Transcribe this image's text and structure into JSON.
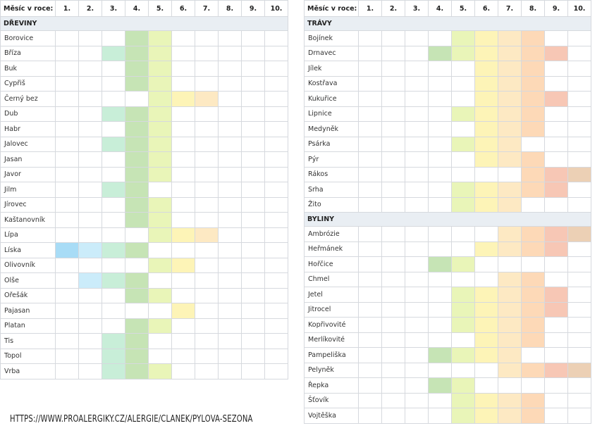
{
  "header": {
    "label": "Měsíc v roce:",
    "months": [
      "1.",
      "2.",
      "3.",
      "4.",
      "5.",
      "6.",
      "7.",
      "8.",
      "9.",
      "10."
    ]
  },
  "legend_colors": {
    "1": "#a8dcf6",
    "2": "#cbecfa",
    "3": "#c8eed8",
    "4": "#c6e4b5",
    "5": "#e9f5b8",
    "6": "#fdf4b7",
    "7": "#fde9c3",
    "8": "#fdd9b7",
    "9": "#f7c7b5",
    "10": "#ecd0b5"
  },
  "footer_url": "HTTPS://WWW.PROALERGIKY.CZ/ALERGIE/CLANEK/PYLOVA-SEZONA",
  "chart_data": {
    "type": "table",
    "sections": [
      {
        "side": "left",
        "name": "DŘEVINY",
        "plants": [
          {
            "name": "Borovice",
            "months": [
              4,
              5
            ]
          },
          {
            "name": "Bříza",
            "months": [
              3,
              4,
              5
            ]
          },
          {
            "name": "Buk",
            "months": [
              4,
              5
            ]
          },
          {
            "name": "Cypřiš",
            "months": [
              4,
              5
            ]
          },
          {
            "name": "Černý bez",
            "months": [
              5,
              6,
              7
            ]
          },
          {
            "name": "Dub",
            "months": [
              3,
              4,
              5
            ]
          },
          {
            "name": "Habr",
            "months": [
              4,
              5
            ]
          },
          {
            "name": "Jalovec",
            "months": [
              3,
              4,
              5
            ]
          },
          {
            "name": "Jasan",
            "months": [
              4,
              5
            ]
          },
          {
            "name": "Javor",
            "months": [
              4,
              5
            ]
          },
          {
            "name": "Jilm",
            "months": [
              3,
              4
            ]
          },
          {
            "name": "Jírovec",
            "months": [
              4,
              5
            ]
          },
          {
            "name": "Kaštanovník",
            "months": [
              4,
              5
            ]
          },
          {
            "name": "Lípa",
            "months": [
              5,
              6,
              7
            ]
          },
          {
            "name": "Líska",
            "months": [
              1,
              2,
              3,
              4
            ]
          },
          {
            "name": "Olivovník",
            "months": [
              5,
              6
            ]
          },
          {
            "name": "Olše",
            "months": [
              2,
              3,
              4
            ]
          },
          {
            "name": "Ořešák",
            "months": [
              4,
              5
            ]
          },
          {
            "name": "Pajasan",
            "months": [
              6
            ]
          },
          {
            "name": "Platan",
            "months": [
              4,
              5
            ]
          },
          {
            "name": "Tis",
            "months": [
              3,
              4
            ]
          },
          {
            "name": "Topol",
            "months": [
              3,
              4
            ]
          },
          {
            "name": "Vrba",
            "months": [
              3,
              4,
              5
            ]
          }
        ]
      },
      {
        "side": "right",
        "name": "TRÁVY",
        "plants": [
          {
            "name": "Bojínek",
            "months": [
              5,
              6,
              7,
              8
            ]
          },
          {
            "name": "Drnavec",
            "months": [
              4,
              5,
              6,
              7,
              8,
              9
            ]
          },
          {
            "name": "Jílek",
            "months": [
              6,
              7,
              8
            ]
          },
          {
            "name": "Kostřava",
            "months": [
              6,
              7,
              8
            ]
          },
          {
            "name": "Kukuřice",
            "months": [
              6,
              7,
              8,
              9
            ]
          },
          {
            "name": "Lipnice",
            "months": [
              5,
              6,
              7,
              8
            ]
          },
          {
            "name": "Medyněk",
            "months": [
              6,
              7,
              8
            ]
          },
          {
            "name": "Psárka",
            "months": [
              5,
              6,
              7
            ]
          },
          {
            "name": "Pýr",
            "months": [
              6,
              7,
              8
            ]
          },
          {
            "name": "Rákos",
            "months": [
              8,
              9,
              10
            ]
          },
          {
            "name": "Srha",
            "months": [
              5,
              6,
              7,
              8,
              9
            ]
          },
          {
            "name": "Žito",
            "months": [
              5,
              6,
              7
            ]
          }
        ]
      },
      {
        "side": "right",
        "name": "BYLINY",
        "plants": [
          {
            "name": "Ambrózie",
            "months": [
              7,
              8,
              9,
              10
            ]
          },
          {
            "name": "Heřmánek",
            "months": [
              6,
              7,
              8,
              9
            ]
          },
          {
            "name": "Hořčice",
            "months": [
              4,
              5
            ]
          },
          {
            "name": "Chmel",
            "months": [
              7,
              8
            ]
          },
          {
            "name": "Jetel",
            "months": [
              5,
              6,
              7,
              8,
              9
            ]
          },
          {
            "name": "Jitrocel",
            "months": [
              5,
              6,
              7,
              8,
              9
            ]
          },
          {
            "name": "Kopřivovité",
            "months": [
              5,
              6,
              7,
              8
            ]
          },
          {
            "name": "Merlíkovité",
            "months": [
              6,
              7,
              8
            ]
          },
          {
            "name": "Pampeliška",
            "months": [
              4,
              5,
              6,
              7
            ]
          },
          {
            "name": "Pelyněk",
            "months": [
              7,
              8,
              9,
              10
            ]
          },
          {
            "name": "Řepka",
            "months": [
              4,
              5
            ]
          },
          {
            "name": "Šťovík",
            "months": [
              5,
              6,
              7,
              8
            ]
          },
          {
            "name": "Vojtěška",
            "months": [
              5,
              6,
              7,
              8
            ]
          }
        ]
      }
    ]
  }
}
